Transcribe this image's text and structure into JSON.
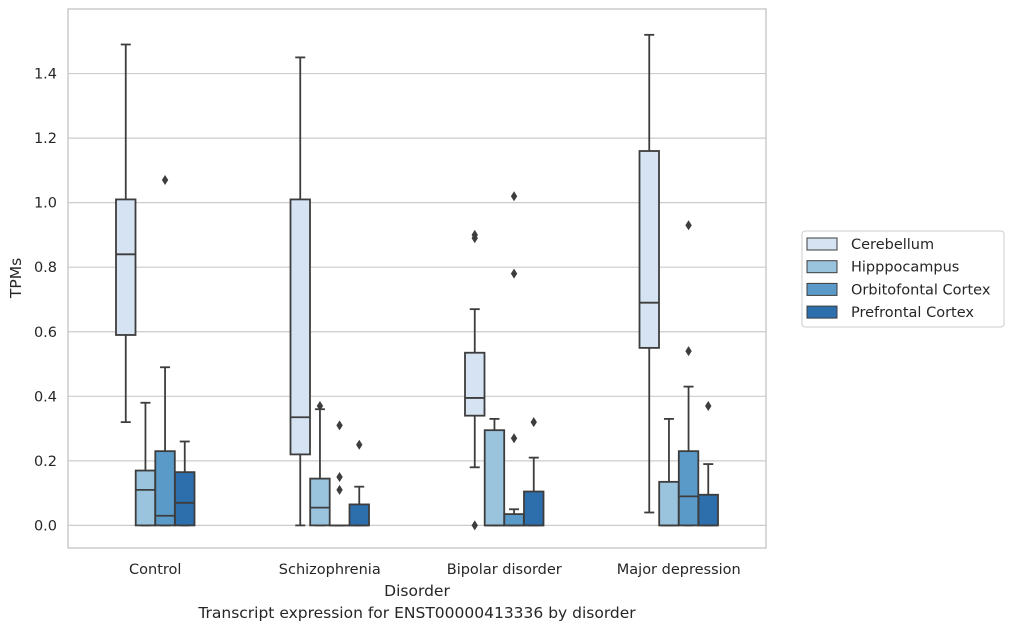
{
  "caption": "Transcript expression for ENST00000413336 by disorder",
  "chart_data": {
    "type": "box",
    "xlabel": "Disorder",
    "ylabel": "TPMs",
    "ylim": [
      -0.07,
      1.6
    ],
    "yticks": [
      "0.0",
      "0.2",
      "0.4",
      "0.6",
      "0.8",
      "1.0",
      "1.2",
      "1.4"
    ],
    "categories": [
      "Control",
      "Schizophrenia",
      "Bipolar disorder",
      "Major depression"
    ],
    "grid": "horizontal",
    "legend_position": "right",
    "series": [
      {
        "name": "Cerebellum",
        "color": "#d5e3f2",
        "boxes": [
          {
            "whisker_low": 0.32,
            "q1": 0.59,
            "median": 0.84,
            "q3": 1.01,
            "whisker_high": 1.49,
            "outliers": []
          },
          {
            "whisker_low": 0.0,
            "q1": 0.22,
            "median": 0.335,
            "q3": 1.01,
            "whisker_high": 1.45,
            "outliers": []
          },
          {
            "whisker_low": 0.18,
            "q1": 0.34,
            "median": 0.395,
            "q3": 0.535,
            "whisker_high": 0.67,
            "outliers": [
              0.0,
              0.89,
              0.9
            ]
          },
          {
            "whisker_low": 0.04,
            "q1": 0.55,
            "median": 0.69,
            "q3": 1.16,
            "whisker_high": 1.52,
            "outliers": []
          }
        ]
      },
      {
        "name": "Hipppocampus",
        "color": "#9ac4de",
        "boxes": [
          {
            "whisker_low": 0.0,
            "q1": 0.0,
            "median": 0.11,
            "q3": 0.17,
            "whisker_high": 0.38,
            "outliers": []
          },
          {
            "whisker_low": 0.0,
            "q1": 0.0,
            "median": 0.055,
            "q3": 0.145,
            "whisker_high": 0.36,
            "outliers": [
              0.37
            ]
          },
          {
            "whisker_low": 0.0,
            "q1": 0.0,
            "median": 0.0,
            "q3": 0.295,
            "whisker_high": 0.33,
            "outliers": []
          },
          {
            "whisker_low": 0.0,
            "q1": 0.0,
            "median": 0.0,
            "q3": 0.135,
            "whisker_high": 0.33,
            "outliers": []
          }
        ]
      },
      {
        "name": "Orbitofontal Cortex",
        "color": "#5a9ac8",
        "boxes": [
          {
            "whisker_low": 0.0,
            "q1": 0.0,
            "median": 0.03,
            "q3": 0.23,
            "whisker_high": 0.49,
            "outliers": [
              1.07
            ]
          },
          {
            "whisker_low": 0.0,
            "q1": 0.0,
            "median": 0.0,
            "q3": 0.0,
            "whisker_high": 0.0,
            "outliers": [
              0.11,
              0.15,
              0.31
            ]
          },
          {
            "whisker_low": 0.0,
            "q1": 0.0,
            "median": 0.0,
            "q3": 0.035,
            "whisker_high": 0.05,
            "outliers": [
              0.27,
              0.78,
              1.02
            ]
          },
          {
            "whisker_low": 0.0,
            "q1": 0.0,
            "median": 0.09,
            "q3": 0.23,
            "whisker_high": 0.43,
            "outliers": [
              0.54,
              0.93
            ]
          }
        ]
      },
      {
        "name": "Prefrontal Cortex",
        "color": "#2d6ead",
        "boxes": [
          {
            "whisker_low": 0.0,
            "q1": 0.0,
            "median": 0.07,
            "q3": 0.165,
            "whisker_high": 0.26,
            "outliers": []
          },
          {
            "whisker_low": 0.0,
            "q1": 0.0,
            "median": 0.0,
            "q3": 0.065,
            "whisker_high": 0.12,
            "outliers": [
              0.25
            ]
          },
          {
            "whisker_low": 0.0,
            "q1": 0.0,
            "median": 0.0,
            "q3": 0.105,
            "whisker_high": 0.21,
            "outliers": [
              0.32
            ]
          },
          {
            "whisker_low": 0.0,
            "q1": 0.0,
            "median": 0.0,
            "q3": 0.095,
            "whisker_high": 0.19,
            "outliers": [
              0.37
            ]
          }
        ]
      }
    ]
  }
}
